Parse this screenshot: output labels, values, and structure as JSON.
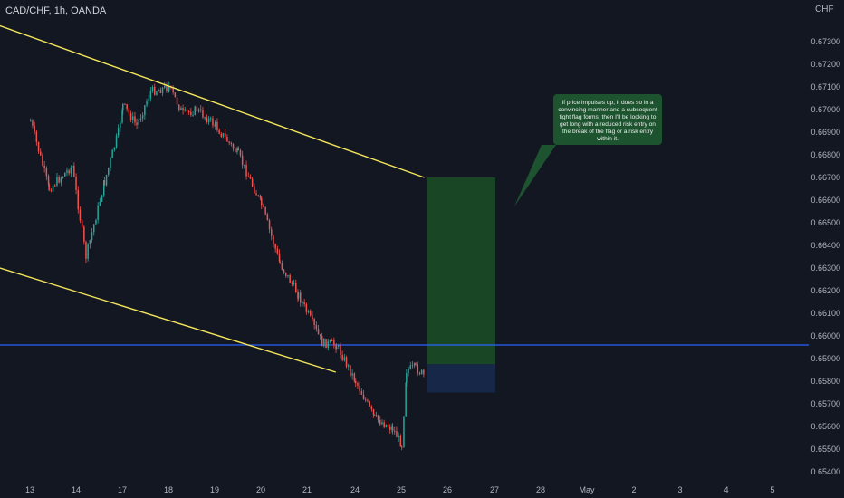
{
  "header": {
    "symbol": "CAD/CHF, 1h, OANDA",
    "currency": "CHF"
  },
  "annotation": {
    "text": "If price impulses up, it does so in a convincing manner and a subsequent tight flag forms, then I'll be looking to get long with a reduced risk entry on the break of the flag or a risk entry within it."
  },
  "colors": {
    "background": "#131722",
    "up": "#26a69a",
    "down": "#ef5350",
    "trendline": "#f5e65c",
    "level": "#2962ff",
    "target_zone": "#1b4d26",
    "stop_zone": "#17284a",
    "note_bg": "#1e5330"
  },
  "chart_data": {
    "type": "candlestick",
    "symbol": "CAD/CHF",
    "timeframe": "1h",
    "broker": "OANDA",
    "y_axis": {
      "label": "CHF",
      "ylim": [
        0.654,
        0.673
      ],
      "ticks": [
        0.654,
        0.655,
        0.656,
        0.657,
        0.658,
        0.659,
        0.66,
        0.661,
        0.662,
        0.663,
        0.664,
        0.665,
        0.666,
        0.667,
        0.668,
        0.669,
        0.67,
        0.671,
        0.672,
        0.673
      ],
      "tick_labels": [
        "0.65400",
        "0.65500",
        "0.65600",
        "0.65700",
        "0.65800",
        "0.65900",
        "0.66000",
        "0.66100",
        "0.66200",
        "0.66300",
        "0.66400",
        "0.66500",
        "0.66600",
        "0.66700",
        "0.66800",
        "0.66900",
        "0.67000",
        "0.67100",
        "0.67200",
        "0.67300"
      ]
    },
    "x_axis": {
      "tick_labels": [
        "13",
        "14",
        "17",
        "18",
        "19",
        "20",
        "21",
        "24",
        "25",
        "26",
        "27",
        "28",
        "May",
        "2",
        "3",
        "4",
        "5"
      ]
    },
    "grid": false,
    "price_path": [
      {
        "x": "13",
        "y": 0.6695
      },
      {
        "x": "13.4",
        "y": 0.6665
      },
      {
        "x": "13.9",
        "y": 0.6675
      },
      {
        "x": "14.2",
        "y": 0.6635
      },
      {
        "x": "14.6",
        "y": 0.6668
      },
      {
        "x": "14.9",
        "y": 0.669
      },
      {
        "x": "17",
        "y": 0.6702
      },
      {
        "x": "17.3",
        "y": 0.6693
      },
      {
        "x": "17.6",
        "y": 0.6708
      },
      {
        "x": "18",
        "y": 0.671
      },
      {
        "x": "18.3",
        "y": 0.6698
      },
      {
        "x": "18.6",
        "y": 0.67
      },
      {
        "x": "19",
        "y": 0.6693
      },
      {
        "x": "19.5",
        "y": 0.668
      },
      {
        "x": "20",
        "y": 0.6658
      },
      {
        "x": "20.4",
        "y": 0.6632
      },
      {
        "x": "20.8",
        "y": 0.6618
      },
      {
        "x": "21.3",
        "y": 0.6597
      },
      {
        "x": "21.6",
        "y": 0.6596
      },
      {
        "x": "24",
        "y": 0.658
      },
      {
        "x": "24.4",
        "y": 0.6564
      },
      {
        "x": "24.8",
        "y": 0.6559
      },
      {
        "x": "25",
        "y": 0.6552
      },
      {
        "x": "25.1",
        "y": 0.6585
      },
      {
        "x": "25.3",
        "y": 0.6586
      },
      {
        "x": "25.5",
        "y": 0.6582
      }
    ],
    "trendlines": [
      {
        "name": "upper-trendline",
        "from": {
          "x": "12",
          "y": 0.6737
        },
        "to": {
          "x": "25.5",
          "y": 0.667
        }
      },
      {
        "name": "lower-trendline",
        "from": {
          "x": "12",
          "y": 0.663
        },
        "to": {
          "x": "21.6",
          "y": 0.6584
        }
      }
    ],
    "horizontal_level": {
      "y": 0.6596
    },
    "position": {
      "side": "long",
      "entry": 0.65875,
      "target": 0.667,
      "stop": 0.6575
    }
  }
}
